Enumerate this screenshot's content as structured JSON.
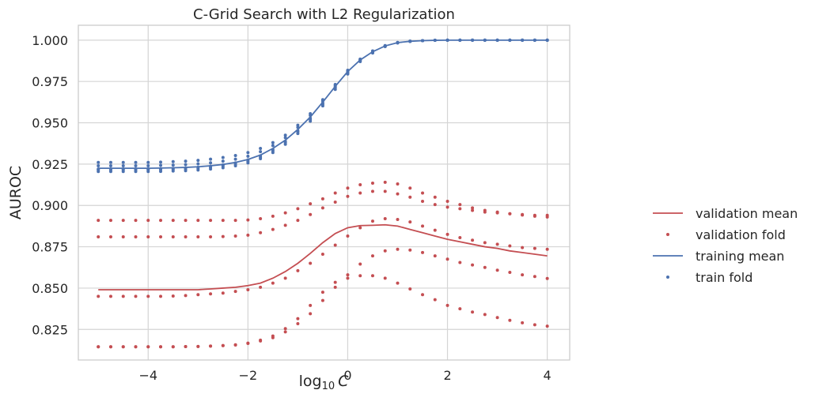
{
  "chart_data": {
    "type": "line",
    "title": "C-Grid Search with L2 Regularization",
    "xlabel": "log",
    "xlabel_sub": "10",
    "xlabel_var": "C",
    "ylabel": "AUROC",
    "xlim": [
      -5.4,
      4.45
    ],
    "ylim": [
      0.8065,
      1.009
    ],
    "grid": true,
    "legend_placement": "center-right outside",
    "x_ticks": [
      -4,
      -2,
      0,
      2,
      4
    ],
    "x_tick_labels": [
      "−4",
      "−2",
      "0",
      "2",
      "4"
    ],
    "y_ticks": [
      0.825,
      0.85,
      0.875,
      0.9,
      0.925,
      0.95,
      0.975,
      1.0
    ],
    "y_tick_labels": [
      "0.825",
      "0.850",
      "0.875",
      "0.900",
      "0.925",
      "0.950",
      "0.975",
      "1.000"
    ],
    "x": [
      -5.0,
      -4.75,
      -4.5,
      -4.25,
      -4.0,
      -3.75,
      -3.5,
      -3.25,
      -3.0,
      -2.75,
      -2.5,
      -2.25,
      -2.0,
      -1.75,
      -1.5,
      -1.25,
      -1.0,
      -0.75,
      -0.5,
      -0.25,
      0.0,
      0.25,
      0.5,
      0.75,
      1.0,
      1.25,
      1.5,
      1.75,
      2.0,
      2.25,
      2.5,
      2.75,
      3.0,
      3.25,
      3.5,
      3.75,
      4.0
    ],
    "series": [
      {
        "name": "validation mean",
        "kind": "line",
        "color": "#c44e52",
        "values": [
          0.849,
          0.849,
          0.849,
          0.849,
          0.849,
          0.849,
          0.849,
          0.849,
          0.849,
          0.8495,
          0.85,
          0.8505,
          0.8515,
          0.853,
          0.856,
          0.86,
          0.865,
          0.871,
          0.8775,
          0.883,
          0.8865,
          0.8878,
          0.888,
          0.8883,
          0.8875,
          0.8855,
          0.8835,
          0.8815,
          0.8795,
          0.878,
          0.8765,
          0.875,
          0.874,
          0.8725,
          0.8715,
          0.8705,
          0.8695
        ]
      },
      {
        "name": "validation fold",
        "kind": "dots",
        "color": "#c44e52",
        "folds": [
          [
            0.891,
            0.891,
            0.891,
            0.891,
            0.891,
            0.891,
            0.891,
            0.891,
            0.891,
            0.891,
            0.891,
            0.891,
            0.8912,
            0.892,
            0.8935,
            0.8955,
            0.898,
            0.901,
            0.904,
            0.9075,
            0.9105,
            0.9125,
            0.9135,
            0.914,
            0.913,
            0.9105,
            0.9075,
            0.905,
            0.9025,
            0.9005,
            0.8985,
            0.897,
            0.896,
            0.895,
            0.8942,
            0.8935,
            0.893
          ],
          [
            0.881,
            0.881,
            0.881,
            0.881,
            0.881,
            0.881,
            0.881,
            0.881,
            0.881,
            0.881,
            0.8812,
            0.8815,
            0.882,
            0.8835,
            0.8855,
            0.888,
            0.891,
            0.8945,
            0.8985,
            0.902,
            0.9055,
            0.9075,
            0.9085,
            0.9085,
            0.907,
            0.905,
            0.9025,
            0.9005,
            0.899,
            0.898,
            0.897,
            0.896,
            0.8955,
            0.895,
            0.8945,
            0.894,
            0.894
          ],
          [
            0.845,
            0.845,
            0.845,
            0.845,
            0.845,
            0.845,
            0.8452,
            0.8455,
            0.846,
            0.8465,
            0.847,
            0.848,
            0.849,
            0.8505,
            0.853,
            0.856,
            0.8605,
            0.865,
            0.8705,
            0.876,
            0.8815,
            0.8865,
            0.8905,
            0.892,
            0.8915,
            0.89,
            0.8875,
            0.885,
            0.8825,
            0.8805,
            0.879,
            0.8775,
            0.8765,
            0.8755,
            0.8745,
            0.874,
            0.8735
          ],
          [
            0.8145,
            0.8145,
            0.8145,
            0.8145,
            0.8145,
            0.8145,
            0.8145,
            0.8146,
            0.8147,
            0.8149,
            0.8152,
            0.8156,
            0.8165,
            0.818,
            0.82,
            0.8235,
            0.8285,
            0.8345,
            0.8425,
            0.8505,
            0.858,
            0.8645,
            0.8695,
            0.8725,
            0.8735,
            0.873,
            0.8715,
            0.8695,
            0.8675,
            0.8655,
            0.864,
            0.8625,
            0.8608,
            0.8595,
            0.858,
            0.857,
            0.8558
          ],
          [
            0.8145,
            0.8145,
            0.8145,
            0.8145,
            0.8145,
            0.8145,
            0.8145,
            0.8146,
            0.8147,
            0.8149,
            0.8152,
            0.8157,
            0.8167,
            0.8185,
            0.821,
            0.8255,
            0.8315,
            0.8395,
            0.8475,
            0.8535,
            0.856,
            0.8575,
            0.8575,
            0.856,
            0.853,
            0.8495,
            0.846,
            0.843,
            0.8395,
            0.8375,
            0.8355,
            0.834,
            0.8322,
            0.8305,
            0.829,
            0.8278,
            0.827
          ]
        ]
      },
      {
        "name": "training mean",
        "kind": "line",
        "color": "#4c72b0",
        "values": [
          0.9225,
          0.9225,
          0.9225,
          0.9225,
          0.9225,
          0.9226,
          0.9228,
          0.923,
          0.9234,
          0.924,
          0.9248,
          0.926,
          0.9278,
          0.9305,
          0.9345,
          0.9395,
          0.946,
          0.9535,
          0.9625,
          0.972,
          0.981,
          0.988,
          0.993,
          0.9965,
          0.9985,
          0.9993,
          0.9997,
          0.9999,
          1.0,
          1.0,
          1.0,
          1.0,
          1.0,
          1.0,
          1.0,
          1.0,
          1.0
        ]
      },
      {
        "name": "train fold",
        "kind": "dots",
        "color": "#4c72b0",
        "folds": [
          [
            0.926,
            0.926,
            0.926,
            0.926,
            0.926,
            0.9262,
            0.9265,
            0.9268,
            0.9273,
            0.928,
            0.929,
            0.9302,
            0.932,
            0.9345,
            0.938,
            0.9425,
            0.9485,
            0.9555,
            0.964,
            0.9732,
            0.9818,
            0.9885,
            0.9935,
            0.9967,
            0.9986,
            0.9994,
            0.9997,
            0.9999,
            1.0,
            1.0,
            1.0,
            1.0,
            1.0,
            1.0,
            1.0,
            1.0,
            1.0
          ],
          [
            0.924,
            0.924,
            0.924,
            0.924,
            0.924,
            0.9242,
            0.9244,
            0.9247,
            0.9252,
            0.9258,
            0.9268,
            0.928,
            0.9298,
            0.9325,
            0.9362,
            0.941,
            0.9472,
            0.9545,
            0.9632,
            0.9725,
            0.9813,
            0.9882,
            0.9932,
            0.9966,
            0.9985,
            0.9993,
            0.9997,
            0.9999,
            1.0,
            1.0,
            1.0,
            1.0,
            1.0,
            1.0,
            1.0,
            1.0,
            1.0
          ],
          [
            0.922,
            0.922,
            0.922,
            0.922,
            0.922,
            0.9222,
            0.9224,
            0.9227,
            0.9231,
            0.9237,
            0.9245,
            0.9257,
            0.9275,
            0.93,
            0.9338,
            0.9388,
            0.9452,
            0.9528,
            0.962,
            0.9718,
            0.9808,
            0.9878,
            0.9928,
            0.9964,
            0.9984,
            0.9993,
            0.9997,
            0.9999,
            1.0,
            1.0,
            1.0,
            1.0,
            1.0,
            1.0,
            1.0,
            1.0,
            1.0
          ],
          [
            0.9215,
            0.9215,
            0.9215,
            0.9215,
            0.9215,
            0.9216,
            0.9218,
            0.922,
            0.9224,
            0.923,
            0.9238,
            0.925,
            0.9267,
            0.9292,
            0.933,
            0.938,
            0.9445,
            0.952,
            0.9612,
            0.9712,
            0.9803,
            0.9875,
            0.9926,
            0.9963,
            0.9984,
            0.9992,
            0.9997,
            0.9999,
            1.0,
            1.0,
            1.0,
            1.0,
            1.0,
            1.0,
            1.0,
            1.0,
            1.0
          ],
          [
            0.9205,
            0.9205,
            0.9205,
            0.9205,
            0.9205,
            0.9206,
            0.9208,
            0.921,
            0.9214,
            0.922,
            0.9228,
            0.924,
            0.9257,
            0.9283,
            0.932,
            0.937,
            0.9435,
            0.951,
            0.9602,
            0.9702,
            0.9795,
            0.987,
            0.9922,
            0.9961,
            0.9983,
            0.9992,
            0.9997,
            0.9999,
            1.0,
            1.0,
            1.0,
            1.0,
            1.0,
            1.0,
            1.0,
            1.0,
            1.0
          ]
        ]
      }
    ],
    "legend": [
      {
        "label": "validation mean",
        "kind": "line",
        "color": "#c44e52"
      },
      {
        "label": "validation fold",
        "kind": "dot",
        "color": "#c44e52"
      },
      {
        "label": "training mean",
        "kind": "line",
        "color": "#4c72b0"
      },
      {
        "label": "train fold",
        "kind": "dot",
        "color": "#4c72b0"
      }
    ]
  }
}
